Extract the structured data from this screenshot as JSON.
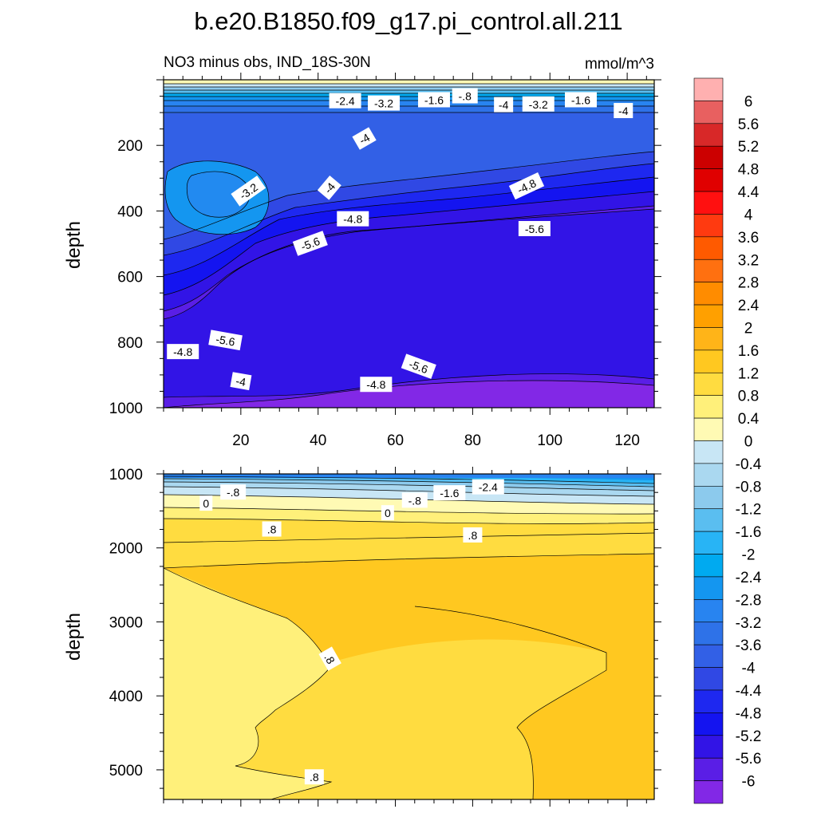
{
  "title": "b.e20.B1850.f09_g17.pi_control.all.211",
  "colorbar": {
    "labels": [
      "6",
      "5.6",
      "5.2",
      "4.8",
      "4.4",
      "4",
      "3.6",
      "3.2",
      "2.8",
      "2.4",
      "2",
      "1.6",
      "1.2",
      "0.8",
      "0.4",
      "0",
      "-0.4",
      "-0.8",
      "-1.2",
      "-1.6",
      "-2",
      "-2.4",
      "-2.8",
      "-3.2",
      "-3.6",
      "-4",
      "-4.4",
      "-4.8",
      "-5.2",
      "-5.6",
      "-6"
    ],
    "colors": [
      "#ffb0b0",
      "#e86060",
      "#d82828",
      "#cc0000",
      "#e00000",
      "#ff1010",
      "#ff3a10",
      "#ff5a00",
      "#ff7010",
      "#ff8c00",
      "#ffa000",
      "#ffb418",
      "#ffc820",
      "#ffdc40",
      "#fff07a",
      "#fffab4",
      "#c8e6f5",
      "#aad8f0",
      "#8ccaed",
      "#5abef0",
      "#28b4f5",
      "#00aaf0",
      "#1496f0",
      "#2884f0",
      "#2e72e8",
      "#3260e6",
      "#3048e4",
      "#1e28f0",
      "#1414f0",
      "#3214e6",
      "#5a1ee6",
      "#8228e6"
    ]
  },
  "chart_data": [
    {
      "type": "contour",
      "panel": "top",
      "left_title": "NO3 minus obs, IND_18S-30N",
      "right_title": "mmol/m^3",
      "ylabel": "depth",
      "xlabel": "",
      "xlim": [
        0,
        127
      ],
      "ylim": [
        1000,
        0
      ],
      "xticks": [
        "20",
        "40",
        "60",
        "80",
        "100",
        "120"
      ],
      "yticks": [
        "200",
        "400",
        "600",
        "800",
        "1000"
      ],
      "contour_labels": [
        {
          "text": "-2.4",
          "x": 47,
          "y": 65,
          "rot": 0
        },
        {
          "text": "-3.2",
          "x": 57,
          "y": 72,
          "rot": 0
        },
        {
          "text": "-1.6",
          "x": 70,
          "y": 62,
          "rot": 0
        },
        {
          "text": "-.8",
          "x": 78,
          "y": 50,
          "rot": 0
        },
        {
          "text": "-4",
          "x": 88,
          "y": 77,
          "rot": 0
        },
        {
          "text": "-3.2",
          "x": 97,
          "y": 75,
          "rot": 0
        },
        {
          "text": "-1.6",
          "x": 108,
          "y": 62,
          "rot": 0
        },
        {
          "text": "-4",
          "x": 119,
          "y": 95,
          "rot": 0
        },
        {
          "text": "-4",
          "x": 52,
          "y": 180,
          "rot": -30
        },
        {
          "text": "-3.2",
          "x": 22,
          "y": 340,
          "rot": -35
        },
        {
          "text": "-4",
          "x": 43,
          "y": 330,
          "rot": -50
        },
        {
          "text": "-4.8",
          "x": 94,
          "y": 325,
          "rot": -25
        },
        {
          "text": "-4.8",
          "x": 49,
          "y": 425,
          "rot": 0
        },
        {
          "text": "-5.6",
          "x": 96,
          "y": 455,
          "rot": 0
        },
        {
          "text": "-5.6",
          "x": 38,
          "y": 500,
          "rot": -20
        },
        {
          "text": "-5.6",
          "x": 16,
          "y": 795,
          "rot": 10
        },
        {
          "text": "-4.8",
          "x": 5,
          "y": 830,
          "rot": 0
        },
        {
          "text": "-5.6",
          "x": 66,
          "y": 875,
          "rot": 20
        },
        {
          "text": "-4",
          "x": 20,
          "y": 920,
          "rot": 10
        },
        {
          "text": "-4.8",
          "x": 55,
          "y": 930,
          "rot": 0
        }
      ]
    },
    {
      "type": "contour",
      "panel": "bottom",
      "left_title": "",
      "right_title": "",
      "ylabel": "depth",
      "xlabel": "",
      "xlim": [
        0,
        127
      ],
      "ylim": [
        5400,
        1000
      ],
      "xticks": [],
      "yticks": [
        "1000",
        "2000",
        "3000",
        "4000",
        "5000"
      ],
      "contour_labels": [
        {
          "text": "-.8",
          "x": 18,
          "y": 1250,
          "rot": 0
        },
        {
          "text": "0",
          "x": 11,
          "y": 1400,
          "rot": 0
        },
        {
          "text": "-.8",
          "x": 65,
          "y": 1360,
          "rot": 0
        },
        {
          "text": "-1.6",
          "x": 74,
          "y": 1260,
          "rot": 0
        },
        {
          "text": "-2.4",
          "x": 84,
          "y": 1180,
          "rot": 0
        },
        {
          "text": "0",
          "x": 58,
          "y": 1530,
          "rot": 0
        },
        {
          "text": ".8",
          "x": 28,
          "y": 1750,
          "rot": 0
        },
        {
          "text": ".8",
          "x": 80,
          "y": 1830,
          "rot": 0
        },
        {
          "text": ".8",
          "x": 43,
          "y": 3500,
          "rot": 60
        },
        {
          "text": ".8",
          "x": 39,
          "y": 5100,
          "rot": 0
        }
      ]
    }
  ]
}
